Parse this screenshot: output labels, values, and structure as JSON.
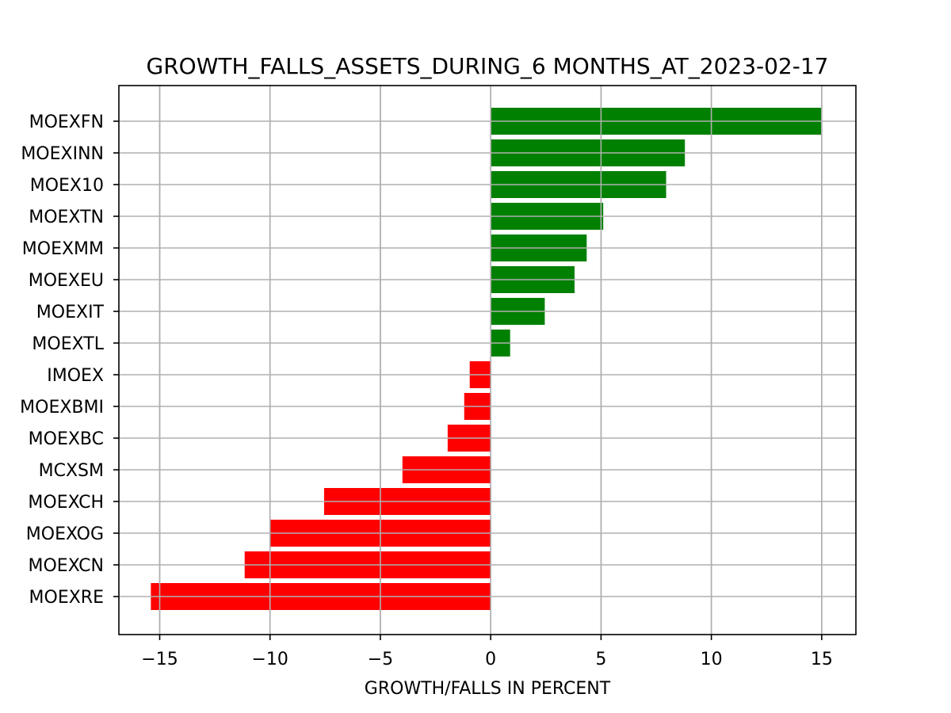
{
  "chart_data": {
    "type": "bar",
    "orientation": "horizontal",
    "title": "GROWTH_FALLS_ASSETS_DURING_6 MONTHS_AT_2023-02-17",
    "xlabel": "GROWTH/FALLS IN PERCENT",
    "ylabel": "",
    "categories": [
      "MOEXFN",
      "MOEXINN",
      "MOEX10",
      "MOEXTN",
      "MOEXMM",
      "MOEXEU",
      "MOEXIT",
      "MOEXTL",
      "IMOEX",
      "MOEXBMI",
      "MOEXBC",
      "MCXSM",
      "MOEXCH",
      "MOEXOG",
      "MOEXCN",
      "MOEXRE"
    ],
    "values": [
      15.0,
      8.8,
      7.95,
      5.1,
      4.35,
      3.8,
      2.45,
      0.88,
      -0.95,
      -1.2,
      -1.95,
      -4.0,
      -7.55,
      -10.0,
      -11.15,
      -15.4
    ],
    "xlim": [
      -16.85,
      16.55
    ],
    "xticks": [
      -15,
      -10,
      -5,
      0,
      5,
      10,
      15
    ],
    "xtick_labels": [
      "−15",
      "−10",
      "−5",
      "0",
      "5",
      "10",
      "15"
    ],
    "grid": true,
    "colors": {
      "positive": "#008000",
      "negative": "#ff0000"
    }
  }
}
